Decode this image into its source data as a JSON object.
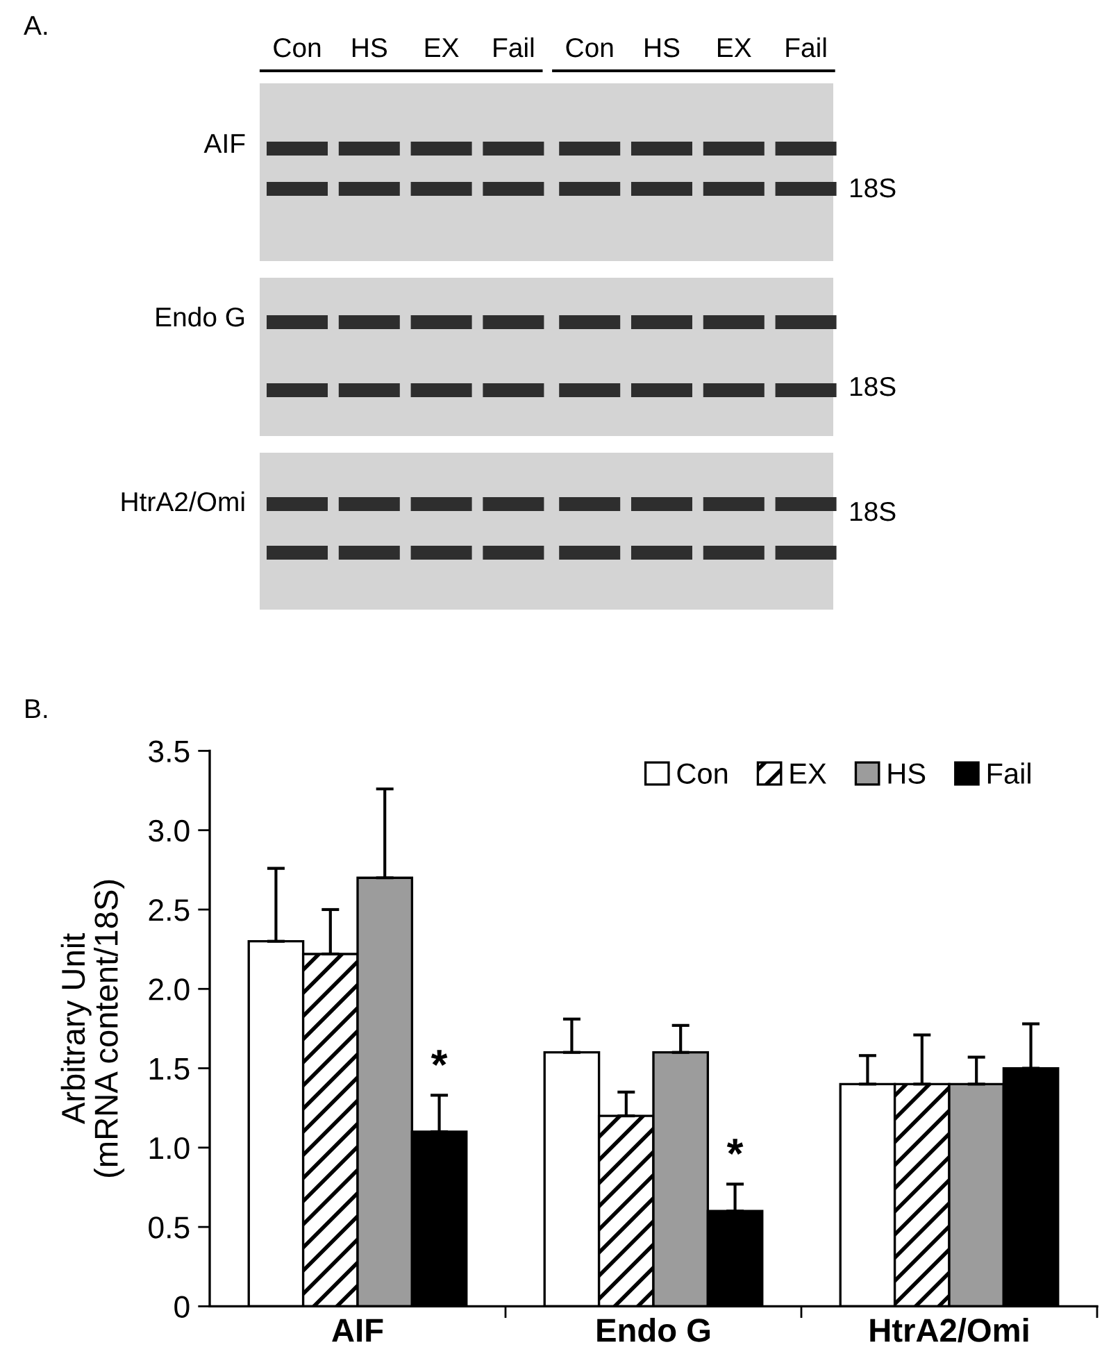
{
  "chart_data": [
    {
      "type": "other",
      "title": "A.",
      "annotations": [
        "Con",
        "HS",
        "EX",
        "Fail",
        "Con",
        "HS",
        "EX",
        "Fail",
        "AIF",
        "18S",
        "Endo G",
        "18S",
        "HtrA2/Omi",
        "18S"
      ]
    },
    {
      "type": "bar",
      "title": "B.",
      "ylabel": "Arbitrary Unit\n(mRNA content/18S)",
      "categories": [
        "AIF",
        "Endo G",
        "HtrA2/Omi"
      ],
      "series": [
        {
          "name": "Con",
          "color": "#ffffff",
          "values": [
            2.3,
            1.6,
            1.4
          ],
          "errors": [
            [
              2.3,
              2.76
            ],
            [
              1.6,
              1.81
            ],
            [
              1.4,
              1.58
            ]
          ]
        },
        {
          "name": "EX",
          "color": "#000000",
          "values": [
            2.22,
            1.2,
            1.4
          ],
          "errors": [
            [
              2.22,
              2.5
            ],
            [
              1.2,
              1.35
            ],
            [
              1.4,
              1.71
            ]
          ]
        },
        {
          "name": "HS",
          "color": "#9c9c9c",
          "values": [
            2.7,
            1.6,
            1.4
          ],
          "errors": [
            [
              2.7,
              3.26
            ],
            [
              1.6,
              1.77
            ],
            [
              1.4,
              1.57
            ]
          ]
        },
        {
          "name": "Fail",
          "color": "#000000",
          "values": [
            1.1,
            0.6,
            1.5
          ],
          "errors": [
            [
              1.1,
              1.33
            ],
            [
              0.6,
              0.77
            ],
            [
              1.5,
              1.78
            ]
          ]
        }
      ],
      "ylim": [
        0,
        3.5
      ],
      "yticks": [
        0,
        0.5,
        {
          "value": 1,
          "label": "1.0"
        },
        1.5,
        {
          "value": 2,
          "label": "2.0"
        },
        2.5,
        {
          "value": 3,
          "label": "3.0"
        },
        3.5
      ],
      "legend": "top right",
      "annotations": [
        {
          "text": "*",
          "x": "AIF",
          "y": 1.5
        },
        {
          "text": "*",
          "x": "Endo G",
          "y": 0.94
        }
      ]
    }
  ]
}
